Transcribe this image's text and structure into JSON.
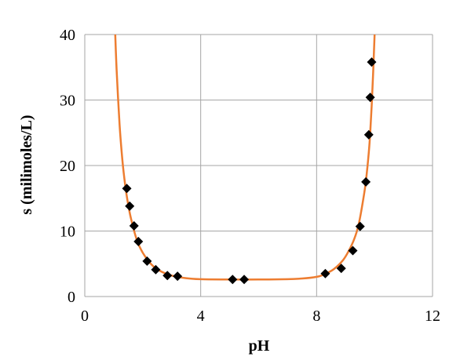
{
  "chart_data": {
    "type": "scatter",
    "title": "",
    "xlabel": "pH",
    "ylabel": "s (milimoles/L)",
    "xlim": [
      0,
      12
    ],
    "ylim": [
      0,
      40
    ],
    "x_ticks": [
      0,
      4,
      8,
      12
    ],
    "y_ticks": [
      0,
      10,
      20,
      30,
      40
    ],
    "x_tick_labels": [
      "0",
      "4",
      "8",
      "12"
    ],
    "y_tick_labels": [
      "0",
      "10",
      "20",
      "30",
      "40"
    ],
    "grid": true,
    "legend": "none",
    "colors": {
      "curve": "#ed7d31",
      "markers": "#000000",
      "grid": "#a6a6a6",
      "axes": "#a6a6a6"
    },
    "series": [
      {
        "type": "scatter",
        "marker": "diamond",
        "x": [
          1.45,
          1.55,
          1.7,
          1.85,
          2.15,
          2.45,
          2.85,
          3.2,
          5.1,
          5.5,
          8.3,
          8.85,
          9.25,
          9.5,
          9.7,
          9.8,
          9.85,
          9.9
        ],
        "y": [
          16.5,
          13.8,
          10.8,
          8.4,
          5.4,
          4.1,
          3.2,
          3.1,
          2.6,
          2.6,
          3.5,
          4.3,
          7.0,
          10.7,
          17.5,
          24.7,
          30.4,
          35.8
        ]
      },
      {
        "type": "line",
        "x": [
          1.05,
          1.1,
          1.2,
          1.3,
          1.4,
          1.5,
          1.6,
          1.8,
          2.0,
          2.3,
          2.6,
          3.0,
          3.5,
          4.0,
          5.0,
          6.0,
          7.0,
          7.5,
          8.0,
          8.3,
          8.6,
          8.9,
          9.1,
          9.3,
          9.45,
          9.6,
          9.7,
          9.8,
          9.85,
          9.9,
          9.95,
          10.0
        ],
        "y": [
          40.0,
          34.5,
          26.3,
          20.7,
          16.8,
          14.0,
          11.8,
          8.6,
          6.7,
          4.9,
          3.9,
          3.2,
          2.8,
          2.65,
          2.6,
          2.6,
          2.65,
          2.75,
          3.0,
          3.45,
          4.2,
          5.5,
          6.9,
          8.8,
          11.0,
          14.6,
          17.6,
          22.0,
          25.0,
          29.2,
          34.0,
          40.0
        ]
      }
    ]
  }
}
